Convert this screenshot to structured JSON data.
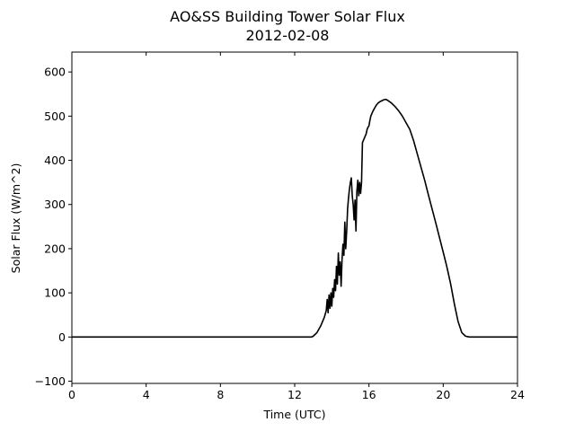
{
  "chart_data": {
    "type": "line",
    "title": "AO&SS Building Tower Solar Flux",
    "subtitle": "2012-02-08",
    "xlabel": "Time (UTC)",
    "ylabel": "Solar Flux (W/m^2)",
    "xlim": [
      0,
      24
    ],
    "ylim": [
      -105,
      645
    ],
    "xticks": [
      0,
      4,
      8,
      12,
      16,
      20,
      24
    ],
    "yticks": [
      -100,
      0,
      100,
      200,
      300,
      400,
      500,
      600
    ],
    "xtick_labels": [
      "0",
      "4",
      "8",
      "12",
      "16",
      "20",
      "24"
    ],
    "ytick_labels": [
      "−100",
      "0",
      "100",
      "200",
      "300",
      "400",
      "500",
      "600"
    ],
    "grid": false,
    "series": [
      {
        "color": "#000000",
        "x": [
          0,
          12.9,
          13.0,
          13.2,
          13.4,
          13.6,
          13.7,
          13.75,
          13.8,
          13.85,
          13.9,
          13.95,
          14.0,
          14.05,
          14.1,
          14.15,
          14.2,
          14.25,
          14.3,
          14.35,
          14.4,
          14.45,
          14.5,
          14.55,
          14.6,
          14.65,
          14.7,
          14.75,
          14.8,
          14.85,
          14.9,
          14.95,
          15.0,
          15.05,
          15.1,
          15.15,
          15.2,
          15.25,
          15.3,
          15.35,
          15.4,
          15.45,
          15.5,
          15.55,
          15.6,
          15.65,
          15.7,
          15.75,
          15.8,
          15.85,
          15.9,
          15.95,
          16.0,
          16.05,
          16.1,
          16.2,
          16.3,
          16.4,
          16.5,
          16.6,
          16.7,
          16.8,
          16.9,
          17.0,
          17.2,
          17.4,
          17.6,
          17.8,
          18.0,
          18.2,
          18.4,
          18.6,
          18.8,
          19.0,
          19.2,
          19.4,
          19.6,
          19.8,
          20.0,
          20.2,
          20.4,
          20.6,
          20.8,
          21.0,
          21.2,
          21.4,
          21.6,
          21.8,
          22.0,
          22.2,
          22.4,
          22.6,
          22.8,
          23.0,
          23.2,
          23.4,
          23.6,
          23.8,
          24.0
        ],
        "y": [
          0,
          0,
          2,
          10,
          25,
          45,
          60,
          85,
          55,
          95,
          65,
          100,
          70,
          110,
          90,
          130,
          105,
          160,
          120,
          190,
          140,
          170,
          115,
          175,
          210,
          185,
          260,
          200,
          240,
          290,
          315,
          335,
          350,
          360,
          320,
          300,
          265,
          310,
          240,
          330,
          355,
          320,
          350,
          325,
          350,
          440,
          445,
          450,
          455,
          460,
          470,
          475,
          478,
          490,
          500,
          510,
          518,
          525,
          530,
          533,
          535,
          537,
          538,
          536,
          530,
          522,
          512,
          500,
          485,
          470,
          445,
          415,
          385,
          355,
          322,
          290,
          258,
          225,
          192,
          158,
          120,
          75,
          35,
          10,
          2,
          0,
          0,
          0,
          0,
          0,
          0,
          0,
          0,
          0,
          0,
          0,
          0,
          0,
          0
        ]
      }
    ]
  }
}
